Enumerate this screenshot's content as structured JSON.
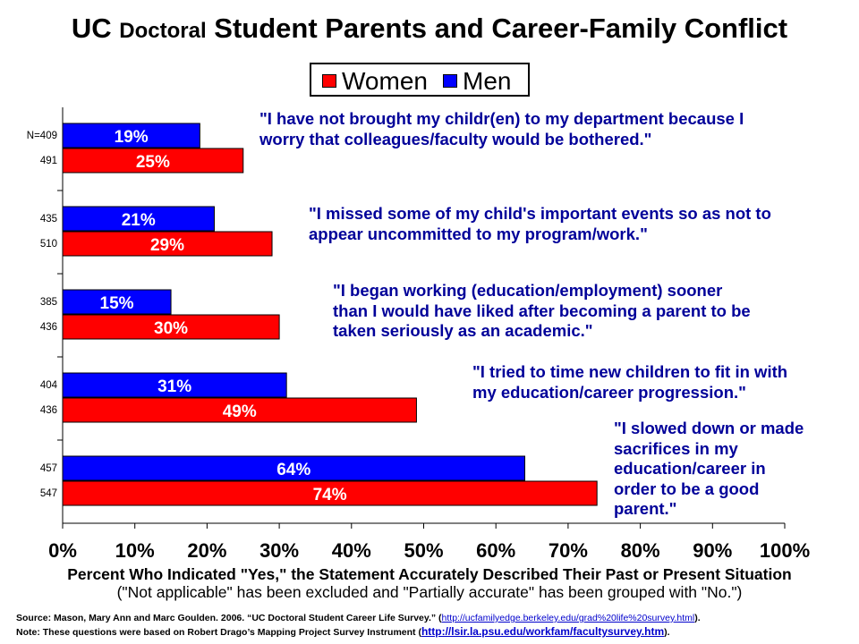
{
  "title": {
    "part1": "UC ",
    "part2": "Doctoral",
    "part3": " Student Parents and Career-Family Conflict"
  },
  "legend": {
    "women": "Women",
    "men": "Men"
  },
  "colors": {
    "women": "#ff0000",
    "men": "#0000ff",
    "quote": "#000099",
    "label": "#ffffff"
  },
  "chart_data": {
    "type": "bar",
    "orientation": "horizontal",
    "xlim": [
      0,
      100
    ],
    "x_ticks": [
      "0%",
      "10%",
      "20%",
      "30%",
      "40%",
      "50%",
      "60%",
      "70%",
      "80%",
      "90%",
      "100%"
    ],
    "xlabel": "Percent Who Indicated \"Yes,\" the Statement Accurately Described Their Past or Present Situation",
    "xlabel_sub": "(\"Not applicable\" has been excluded and \"Partially accurate\" has been grouped with \"No.\")",
    "series": [
      {
        "name": "Women",
        "color": "#ff0000"
      },
      {
        "name": "Men",
        "color": "#0000ff"
      }
    ],
    "groups": [
      {
        "men": 19,
        "women": 25,
        "men_label": "19%",
        "women_label": "25%",
        "men_n": "N=409",
        "women_n": "491",
        "quote": [
          "\"I have not brought my childr(en) to my department because I",
          "worry that colleagues/faculty would be bothered.\""
        ]
      },
      {
        "men": 21,
        "women": 29,
        "men_label": "21%",
        "women_label": "29%",
        "men_n": "435",
        "women_n": "510",
        "quote": [
          "\"I missed some of my child's important events so as not to",
          "appear uncommitted to my program/work.\""
        ]
      },
      {
        "men": 15,
        "women": 30,
        "men_label": "15%",
        "women_label": "30%",
        "men_n": "385",
        "women_n": "436",
        "quote": [
          "\"I began working (education/employment) sooner",
          "than I would have liked after becoming a parent to be",
          "taken seriously as an academic.\""
        ]
      },
      {
        "men": 31,
        "women": 49,
        "men_label": "31%",
        "women_label": "49%",
        "men_n": "404",
        "women_n": "436",
        "quote": [
          "\"I tried to time new children to fit in with",
          "my education/career progression.\""
        ]
      },
      {
        "men": 64,
        "women": 74,
        "men_label": "64%",
        "women_label": "74%",
        "men_n": "457",
        "women_n": "547",
        "quote": [
          "\"I slowed down or made",
          "sacrifices in my",
          "education/career in",
          "order to be a good",
          "parent.\""
        ]
      }
    ]
  },
  "source": {
    "line1_text": "Source: Mason, Mary Ann  and Marc Goulden.  2006. “UC Doctoral  Student Career Life Survey.” (",
    "line1_link": "http://ucfamilyedge.berkeley.edu/grad%20life%20survey.html",
    "line1_end": ").",
    "line2_text": "Note: These questions were based on Robert Drago’s Mapping Project Survey Instrument (",
    "line2_link": "http://lsir.la.psu.edu/workfam/facultysurvey.htm",
    "line2_end": ")."
  }
}
